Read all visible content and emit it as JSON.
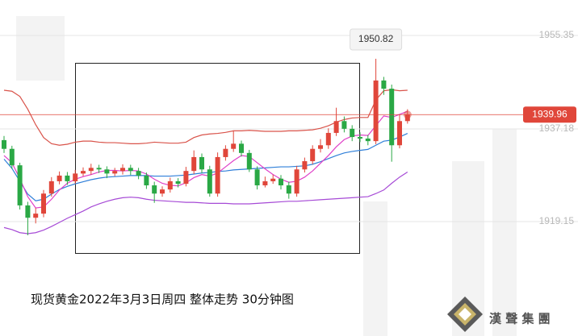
{
  "chart_data": {
    "type": "candlestick",
    "caption": "现货黄金2022年3月3日周四  整体走势  30分钟图",
    "brand": "漢 聲 集 團",
    "ylim": [
      1896.9,
      1962.25
    ],
    "yticks": [
      1955.35,
      1937.18,
      1919.15
    ],
    "grid": true,
    "up_color": "#e0463a",
    "down_color": "#2aa845",
    "open": [
      1935.0,
      1933.3,
      1930.1,
      1922.3,
      1919.9,
      1920.7,
      1924.6,
      1927.0,
      1928.1,
      1927.0,
      1928.5,
      1929.0,
      1929.6,
      1929.3,
      1928.5,
      1929.0,
      1929.6,
      1929.0,
      1928.1,
      1926.2,
      1924.6,
      1925.4,
      1927.0,
      1926.5,
      1929.0,
      1931.7,
      1929.3,
      1924.6,
      1931.7,
      1933.3,
      1934.3,
      1932.5,
      1929.3,
      1926.2,
      1927.0,
      1927.5,
      1926.2,
      1924.6,
      1929.3,
      1930.9,
      1933.3,
      1934.0,
      1936.4,
      1938.7,
      1937.2,
      1935.6,
      1935.3,
      1934.8,
      1946.6,
      1945.0,
      1934.0,
      1938.7
    ],
    "high": [
      1935.8,
      1933.9,
      1930.6,
      1923.0,
      1921.8,
      1925.3,
      1927.8,
      1928.9,
      1928.8,
      1929.2,
      1929.7,
      1930.4,
      1930.2,
      1929.9,
      1929.6,
      1930.3,
      1930.2,
      1929.6,
      1928.7,
      1926.9,
      1926.0,
      1927.7,
      1927.6,
      1929.8,
      1933.0,
      1932.4,
      1930.0,
      1932.6,
      1934.0,
      1936.8,
      1934.9,
      1933.1,
      1929.9,
      1927.9,
      1928.3,
      1928.2,
      1926.9,
      1930.0,
      1931.6,
      1934.0,
      1935.2,
      1937.3,
      1941.3,
      1939.6,
      1937.9,
      1936.5,
      1936.0,
      1950.82,
      1947.3,
      1945.8,
      1940.0,
      1941.0
    ],
    "low": [
      1932.5,
      1929.4,
      1921.5,
      1916.5,
      1918.8,
      1920.0,
      1924.0,
      1926.4,
      1926.3,
      1926.5,
      1928.0,
      1928.3,
      1928.6,
      1927.6,
      1928.0,
      1928.3,
      1928.2,
      1927.4,
      1925.5,
      1922.8,
      1924.0,
      1924.8,
      1925.8,
      1926.0,
      1928.4,
      1928.6,
      1924.0,
      1924.0,
      1931.0,
      1932.7,
      1931.8,
      1928.8,
      1925.4,
      1925.8,
      1926.5,
      1925.4,
      1923.6,
      1924.0,
      1928.7,
      1930.3,
      1932.6,
      1933.3,
      1935.8,
      1936.5,
      1934.8,
      1934.6,
      1934.0,
      1934.2,
      1943.8,
      1930.8,
      1933.4,
      1938.2
    ],
    "close": [
      1933.3,
      1930.1,
      1922.3,
      1919.9,
      1920.7,
      1924.6,
      1927.0,
      1928.1,
      1927.0,
      1928.5,
      1929.0,
      1929.6,
      1929.3,
      1928.5,
      1929.0,
      1929.6,
      1929.0,
      1928.1,
      1926.2,
      1924.6,
      1925.4,
      1927.0,
      1926.5,
      1929.0,
      1931.7,
      1929.3,
      1924.6,
      1931.7,
      1933.3,
      1934.3,
      1932.5,
      1929.3,
      1926.2,
      1927.0,
      1927.5,
      1926.2,
      1924.6,
      1929.3,
      1930.9,
      1933.3,
      1934.0,
      1936.4,
      1938.7,
      1937.2,
      1935.6,
      1935.3,
      1934.8,
      1946.6,
      1945.0,
      1934.0,
      1938.7,
      1939.96
    ],
    "overlays": [
      {
        "color": "#d9534a",
        "values": [
          1944.7,
          1944.5,
          1943.5,
          1941.0,
          1938.0,
          1935.5,
          1934.3,
          1934.0,
          1934.2,
          1934.6,
          1934.8,
          1934.8,
          1934.6,
          1934.5,
          1934.5,
          1934.4,
          1934.3,
          1934.3,
          1934.4,
          1934.6,
          1934.5,
          1934.4,
          1934.4,
          1934.6,
          1935.5,
          1936.0,
          1936.2,
          1936.3,
          1936.5,
          1936.8,
          1936.8,
          1936.9,
          1936.8,
          1936.7,
          1936.7,
          1936.7,
          1936.8,
          1936.8,
          1936.9,
          1937.0,
          1937.3,
          1937.8,
          1938.5,
          1939.0,
          1939.3,
          1939.4,
          1939.4,
          1942.8,
          1944.6,
          1944.8,
          1944.6,
          1944.7
        ]
      },
      {
        "color": "#a64ad6",
        "values": [
          1918.0,
          1917.6,
          1917.0,
          1916.8,
          1917.0,
          1917.5,
          1918.2,
          1919.0,
          1919.8,
          1920.5,
          1921.2,
          1922.0,
          1922.6,
          1923.1,
          1923.5,
          1923.8,
          1923.9,
          1923.8,
          1923.5,
          1923.3,
          1923.2,
          1923.1,
          1923.0,
          1922.9,
          1922.9,
          1922.8,
          1922.7,
          1922.7,
          1922.7,
          1922.6,
          1922.6,
          1922.6,
          1922.7,
          1922.8,
          1922.9,
          1923.0,
          1923.1,
          1923.1,
          1923.2,
          1923.3,
          1923.4,
          1923.5,
          1923.6,
          1923.7,
          1923.8,
          1923.9,
          1924.0,
          1924.6,
          1925.3,
          1926.6,
          1927.8,
          1928.8
        ]
      },
      {
        "color": "#2f7fd9",
        "values": [
          1931.3,
          1929.5,
          1927.0,
          1924.5,
          1923.2,
          1923.5,
          1924.5,
          1925.4,
          1926.0,
          1926.5,
          1926.9,
          1927.3,
          1927.6,
          1927.8,
          1927.9,
          1928.0,
          1928.1,
          1928.1,
          1928.1,
          1928.0,
          1928.0,
          1928.0,
          1928.1,
          1928.2,
          1928.4,
          1928.6,
          1928.7,
          1928.9,
          1929.0,
          1929.2,
          1929.3,
          1929.4,
          1929.5,
          1929.6,
          1929.7,
          1929.8,
          1929.8,
          1929.9,
          1930.0,
          1930.3,
          1930.8,
          1931.4,
          1932.0,
          1932.5,
          1932.8,
          1933.0,
          1933.2,
          1934.0,
          1934.8,
          1935.0,
          1935.6,
          1936.3
        ]
      },
      {
        "color": "#e040c8",
        "values": [
          1932.0,
          1930.6,
          1927.5,
          1924.0,
          1921.8,
          1922.0,
          1923.5,
          1925.3,
          1926.6,
          1927.4,
          1927.9,
          1928.3,
          1928.8,
          1929.1,
          1929.1,
          1929.0,
          1929.1,
          1929.0,
          1928.4,
          1927.4,
          1926.6,
          1926.2,
          1926.1,
          1926.7,
          1927.7,
          1928.3,
          1928.0,
          1928.6,
          1929.8,
          1931.0,
          1932.0,
          1931.8,
          1930.6,
          1929.4,
          1928.3,
          1927.4,
          1926.8,
          1927.0,
          1927.8,
          1929.0,
          1930.5,
          1932.0,
          1933.7,
          1935.1,
          1935.8,
          1936.0,
          1935.9,
          1937.8,
          1939.7,
          1939.4,
          1940.0,
          1940.6
        ]
      }
    ]
  }
}
